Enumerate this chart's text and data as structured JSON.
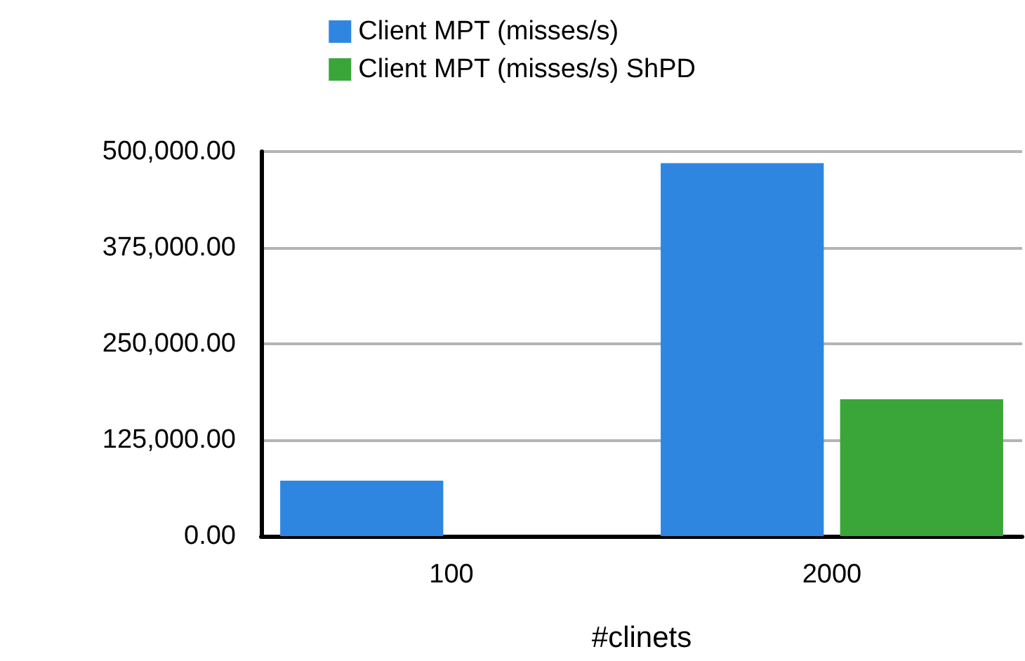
{
  "chart_data": {
    "type": "bar",
    "categories": [
      "100",
      "2000"
    ],
    "xlabel": "#clinets",
    "series": [
      {
        "name": "Client MPT (misses/s)",
        "color": "#2f86e0",
        "values": [
          72000,
          485000
        ]
      },
      {
        "name": "Client MPT (misses/s) ShPD",
        "color": "#3aa63a",
        "values": [
          0,
          178000
        ]
      }
    ],
    "ylim": [
      0,
      500000
    ],
    "yticks": [
      {
        "value": 0,
        "label": "0.00"
      },
      {
        "value": 125000,
        "label": "125,000.00"
      },
      {
        "value": 250000,
        "label": "250,000.00"
      },
      {
        "value": 375000,
        "label": "375,000.00"
      },
      {
        "value": 500000,
        "label": "500,000.00"
      }
    ],
    "grid": "y",
    "legend": "top"
  }
}
